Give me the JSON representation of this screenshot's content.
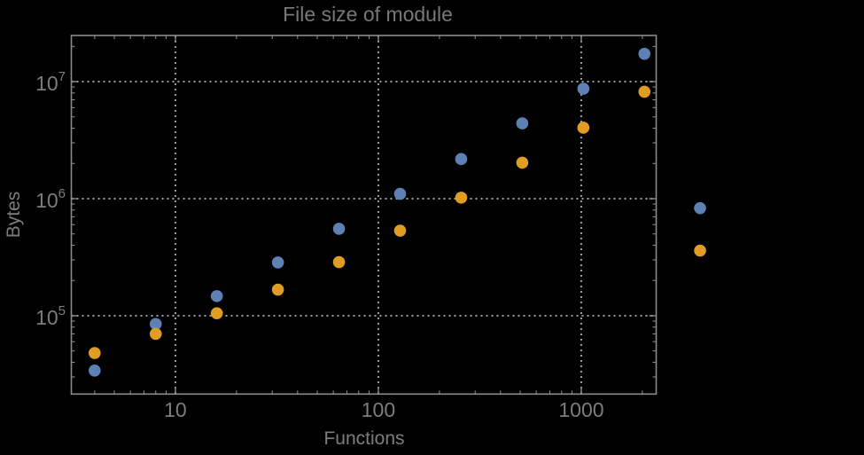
{
  "chart_data": {
    "type": "scatter",
    "title": "File size of module",
    "xlabel": "Functions",
    "ylabel": "Bytes",
    "x_scale": "log",
    "y_scale": "log",
    "grid": "dotted-major",
    "legend": "none",
    "xlim": [
      3.07,
      2340
    ],
    "ylim": [
      21400,
      24800000
    ],
    "x_major_ticks": [
      10,
      100,
      1000
    ],
    "x_major_labels": [
      "10",
      "100",
      "1000"
    ],
    "x_minor_ticks": [
      4,
      5,
      6,
      7,
      8,
      9,
      20,
      30,
      40,
      50,
      60,
      70,
      80,
      90,
      200,
      300,
      400,
      500,
      600,
      700,
      800,
      900,
      2000
    ],
    "y_major_ticks": [
      100000,
      1000000,
      10000000
    ],
    "y_major_labels": [
      {
        "base": "10",
        "exp": "5"
      },
      {
        "base": "10",
        "exp": "6"
      },
      {
        "base": "10",
        "exp": "7"
      }
    ],
    "y_minor_ticks": [
      30000,
      40000,
      50000,
      60000,
      70000,
      80000,
      90000,
      200000,
      300000,
      400000,
      500000,
      600000,
      700000,
      800000,
      900000,
      2000000,
      3000000,
      4000000,
      5000000,
      6000000,
      7000000,
      8000000,
      9000000,
      20000000
    ],
    "x": [
      4,
      8,
      16,
      32,
      64,
      128,
      256,
      512,
      1024,
      2048,
      3850
    ],
    "series": [
      {
        "name": "series-1-blue",
        "color": "#5E81B5",
        "values": [
          34000,
          85000,
          147000,
          285000,
          553000,
          1100000,
          2180000,
          4400000,
          8700000,
          17300000,
          830000
        ]
      },
      {
        "name": "series-2-orange",
        "color": "#E19C24",
        "values": [
          48000,
          70000,
          105000,
          167000,
          287000,
          533000,
          1020000,
          2030000,
          4040000,
          8200000,
          360000
        ]
      }
    ]
  },
  "colors": {
    "background": "#000000",
    "frame": "#8a8a8a",
    "grid": "#9f9f9f",
    "text": "#7d7d7d",
    "series1": "#5E81B5",
    "series2": "#E19C24"
  }
}
